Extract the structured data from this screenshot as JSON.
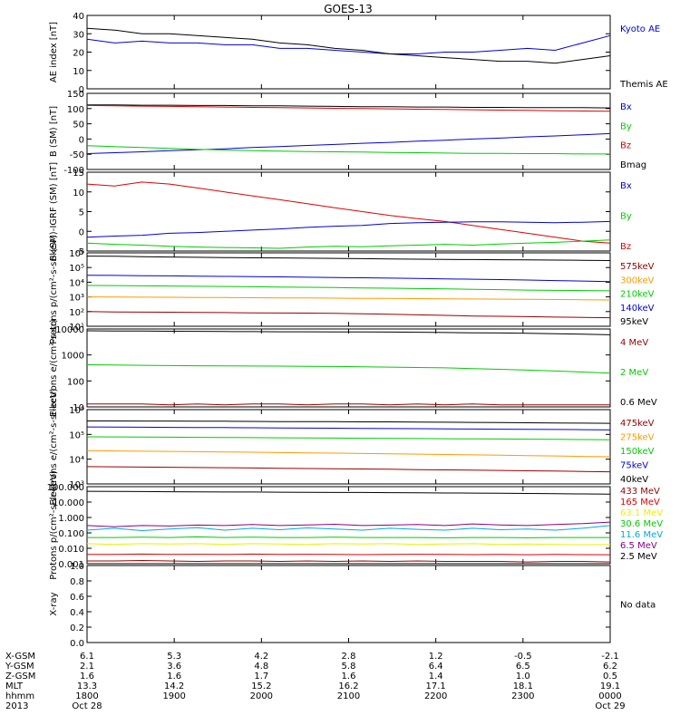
{
  "title": "GOES-13",
  "x_ticks": [
    "1800",
    "1900",
    "2000",
    "2100",
    "2200",
    "2300",
    "0000"
  ],
  "colors": {
    "black": "#000000",
    "blue": "#0000dd",
    "green": "#00cc00",
    "red": "#dd0000",
    "orange": "#ff9900",
    "darkred": "#990000",
    "yellow": "#eeee00",
    "cyan": "#00aadd",
    "purple": "#880088"
  },
  "chart_data": [
    {
      "type": "line",
      "ylabel": "AE index [nT]",
      "ylim": [
        0,
        40
      ],
      "yticks": [
        "0",
        "10",
        "20",
        "30",
        "40"
      ],
      "log": false,
      "legend": [
        {
          "label": "Kyoto AE",
          "color": "blue"
        },
        {
          "label": "Themis AE",
          "color": "black"
        }
      ],
      "series": [
        {
          "name": "Kyoto AE",
          "color": "blue",
          "values": [
            27,
            25,
            26,
            25,
            25,
            24,
            24,
            22,
            22,
            21,
            20,
            19,
            19,
            20,
            20,
            21,
            22,
            21,
            25,
            29
          ]
        },
        {
          "name": "Themis AE",
          "color": "black",
          "values": [
            33,
            32,
            30,
            30,
            29,
            28,
            27,
            25,
            24,
            22,
            21,
            19,
            18,
            17,
            16,
            15,
            15,
            14,
            16,
            18
          ]
        }
      ]
    },
    {
      "type": "line",
      "ylabel": "B (SM) [nT]",
      "ylim": [
        -100,
        150
      ],
      "yticks": [
        "-100",
        "-50",
        "0",
        "50",
        "100",
        "150"
      ],
      "log": false,
      "legend": [
        {
          "label": "Bx",
          "color": "blue"
        },
        {
          "label": "By",
          "color": "green"
        },
        {
          "label": "Bz",
          "color": "red"
        },
        {
          "label": "Bmag",
          "color": "black"
        }
      ],
      "series": [
        {
          "name": "Bmag",
          "color": "black",
          "values": [
            112,
            112,
            111,
            111,
            110,
            110,
            109,
            109,
            108,
            107,
            106,
            106,
            105,
            105,
            104,
            104,
            103,
            103,
            103,
            102
          ]
        },
        {
          "name": "Bz",
          "color": "red",
          "values": [
            110,
            109,
            108,
            107,
            106,
            105,
            104,
            103,
            102,
            101,
            100,
            99,
            98,
            97,
            96,
            95,
            94,
            93,
            92,
            91
          ]
        },
        {
          "name": "Bx",
          "color": "blue",
          "values": [
            -48,
            -45,
            -42,
            -38,
            -35,
            -32,
            -28,
            -25,
            -21,
            -18,
            -14,
            -11,
            -7,
            -4,
            0,
            3,
            7,
            10,
            14,
            18
          ]
        },
        {
          "name": "By",
          "color": "green",
          "values": [
            -22,
            -25,
            -28,
            -31,
            -34,
            -36,
            -38,
            -40,
            -41,
            -42,
            -43,
            -44,
            -45,
            -46,
            -47,
            -47,
            -48,
            -48,
            -49,
            -49
          ]
        }
      ]
    },
    {
      "type": "line",
      "ylabel": "B (SM)-IGRF (SM) [nT]",
      "ylim": [
        -5,
        15
      ],
      "yticks": [
        "-5",
        "0",
        "5",
        "10",
        "15"
      ],
      "log": false,
      "legend": [
        {
          "label": "Bx",
          "color": "blue"
        },
        {
          "label": "By",
          "color": "green"
        },
        {
          "label": "Bz",
          "color": "red"
        }
      ],
      "series": [
        {
          "name": "Bz",
          "color": "red",
          "values": [
            12,
            11.5,
            12.5,
            12,
            11,
            10,
            9,
            8,
            7,
            6,
            5,
            4,
            3.2,
            2.5,
            1.5,
            0.5,
            -0.5,
            -1.5,
            -2.5,
            -3
          ]
        },
        {
          "name": "Bx",
          "color": "blue",
          "values": [
            -1.5,
            -1.2,
            -1,
            -0.5,
            -0.3,
            0,
            0.3,
            0.6,
            1,
            1.3,
            1.5,
            2,
            2.2,
            2.3,
            2.4,
            2.4,
            2.3,
            2.2,
            2.3,
            2.5
          ]
        },
        {
          "name": "By",
          "color": "green",
          "values": [
            -3,
            -3.3,
            -3.5,
            -3.8,
            -4,
            -4.1,
            -4.2,
            -4.3,
            -4,
            -3.8,
            -3.9,
            -3.7,
            -3.5,
            -3.3,
            -3.5,
            -3.2,
            -3,
            -2.8,
            -2.5,
            -2.2
          ]
        }
      ]
    },
    {
      "type": "line",
      "ylabel": "Protons p/(cm²-s-sr-keV)",
      "ylim": [
        10,
        1000000
      ],
      "yticks": [
        "10¹",
        "10²",
        "10³",
        "10⁴",
        "10⁵",
        "10⁶"
      ],
      "log": true,
      "legend": [
        {
          "label": "575keV",
          "color": "darkred"
        },
        {
          "label": "300keV",
          "color": "orange"
        },
        {
          "label": "210keV",
          "color": "green"
        },
        {
          "label": "140keV",
          "color": "blue"
        },
        {
          "label": "95keV",
          "color": "black"
        }
      ],
      "series": [
        {
          "name": "95keV",
          "color": "black",
          "values": [
            600000,
            580000,
            550000,
            520000,
            500000,
            480000,
            460000,
            450000,
            430000,
            420000,
            400000,
            380000,
            370000,
            360000,
            350000,
            340000,
            330000,
            320000,
            310000,
            300000
          ]
        },
        {
          "name": "140keV",
          "color": "blue",
          "values": [
            30000,
            29000,
            28000,
            27000,
            26000,
            25000,
            24000,
            23000,
            22000,
            21000,
            20000,
            19000,
            18000,
            17000,
            16000,
            15000,
            14000,
            13000,
            12000,
            11000
          ]
        },
        {
          "name": "210keV",
          "color": "green",
          "values": [
            6000,
            5900,
            5700,
            5500,
            5300,
            5100,
            4900,
            4700,
            4500,
            4300,
            4100,
            3900,
            3700,
            3500,
            3300,
            3100,
            2900,
            2800,
            2700,
            2600
          ]
        },
        {
          "name": "300keV",
          "color": "orange",
          "values": [
            1000,
            980,
            960,
            940,
            920,
            900,
            880,
            860,
            840,
            820,
            800,
            780,
            760,
            740,
            720,
            700,
            680,
            660,
            640,
            620
          ]
        },
        {
          "name": "575keV",
          "color": "darkred",
          "values": [
            100,
            95,
            92,
            90,
            88,
            85,
            82,
            80,
            78,
            75,
            70,
            65,
            60,
            55,
            50,
            48,
            45,
            42,
            40,
            38
          ]
        }
      ]
    },
    {
      "type": "line",
      "ylabel": "Electrons e/(cm²-s-sr)",
      "ylim": [
        10,
        10000
      ],
      "yticks": [
        "10",
        "100",
        "1000",
        "10000"
      ],
      "log": true,
      "legend": [
        {
          "label": "4 MeV",
          "color": "darkred"
        },
        {
          "label": "2 MeV",
          "color": "green"
        },
        {
          "label": "0.6 MeV",
          "color": "black"
        }
      ],
      "series": [
        {
          "name": "0.6 MeV",
          "color": "black",
          "values": [
            8500,
            8400,
            8300,
            8200,
            8100,
            8000,
            7900,
            7800,
            7800,
            7700,
            7700,
            7600,
            7500,
            7300,
            7100,
            7000,
            6800,
            6600,
            6300,
            6000
          ]
        },
        {
          "name": "2 MeV",
          "color": "green",
          "values": [
            420,
            410,
            400,
            390,
            385,
            380,
            375,
            370,
            365,
            360,
            350,
            340,
            330,
            320,
            300,
            280,
            260,
            240,
            220,
            200
          ]
        },
        {
          "name": "4 MeV",
          "color": "darkred",
          "values": [
            13,
            13,
            13,
            12,
            13,
            12,
            13,
            13,
            12,
            13,
            13,
            12,
            13,
            12,
            13,
            12,
            12,
            12,
            12,
            12
          ]
        }
      ]
    },
    {
      "type": "line",
      "ylabel": "Electrons e/(cm²-s-sr-keV)",
      "ylim": [
        1000,
        1000000
      ],
      "yticks": [
        "10³",
        "10⁴",
        "10⁵",
        "10⁶"
      ],
      "log": true,
      "legend": [
        {
          "label": "475keV",
          "color": "darkred"
        },
        {
          "label": "275keV",
          "color": "orange"
        },
        {
          "label": "150keV",
          "color": "green"
        },
        {
          "label": "75keV",
          "color": "blue"
        },
        {
          "label": "40keV",
          "color": "black"
        }
      ],
      "series": [
        {
          "name": "40keV",
          "color": "black",
          "values": [
            350000,
            350000,
            345000,
            345000,
            340000,
            340000,
            335000,
            330000,
            330000,
            325000,
            320000,
            320000,
            315000,
            310000,
            305000,
            300000,
            295000,
            290000,
            285000,
            280000
          ]
        },
        {
          "name": "75keV",
          "color": "blue",
          "values": [
            200000,
            198000,
            195000,
            192000,
            190000,
            188000,
            185000,
            182000,
            180000,
            178000,
            175000,
            172000,
            170000,
            168000,
            165000,
            162000,
            160000,
            158000,
            155000,
            152000
          ]
        },
        {
          "name": "150keV",
          "color": "green",
          "values": [
            80000,
            79000,
            78000,
            77000,
            76000,
            75000,
            74000,
            73000,
            72000,
            71000,
            70000,
            69000,
            68000,
            67000,
            66000,
            65000,
            64000,
            63000,
            62000,
            61000
          ]
        },
        {
          "name": "275keV",
          "color": "orange",
          "values": [
            22000,
            21500,
            21000,
            20500,
            20000,
            19500,
            19000,
            18500,
            18000,
            17500,
            17000,
            16500,
            16000,
            15500,
            15000,
            14500,
            14000,
            13500,
            13000,
            12500
          ]
        },
        {
          "name": "475keV",
          "color": "darkred",
          "values": [
            5000,
            4900,
            4800,
            4700,
            4600,
            4500,
            4400,
            4300,
            4200,
            4100,
            4000,
            3900,
            3800,
            3700,
            3600,
            3500,
            3400,
            3300,
            3200,
            3100
          ]
        }
      ]
    },
    {
      "type": "line",
      "ylabel": "Protons p/(cm²-s-sr-keV)",
      "ylim": [
        0.001,
        100
      ],
      "yticks": [
        "0.001",
        "0.010",
        "0.100",
        "1.000",
        "10.000",
        "100.000"
      ],
      "log": true,
      "legend": [
        {
          "label": "433 MeV",
          "color": "darkred"
        },
        {
          "label": "165 MeV",
          "color": "red"
        },
        {
          "label": "63.1 MeV",
          "color": "yellow"
        },
        {
          "label": "30.6 MeV",
          "color": "green"
        },
        {
          "label": "11.6 MeV",
          "color": "cyan"
        },
        {
          "label": "6.5 MeV",
          "color": "purple"
        },
        {
          "label": "2.5 MeV",
          "color": "black"
        }
      ],
      "series": [
        {
          "name": "2.5 MeV",
          "color": "black",
          "values": [
            50,
            49,
            48,
            47,
            46,
            45,
            45,
            44,
            43,
            42,
            42,
            41,
            40,
            39,
            38,
            37,
            36,
            35,
            34,
            33
          ]
        },
        {
          "name": "6.5 MeV",
          "color": "purple",
          "values": [
            0.3,
            0.25,
            0.3,
            0.28,
            0.32,
            0.3,
            0.35,
            0.3,
            0.33,
            0.36,
            0.3,
            0.32,
            0.35,
            0.3,
            0.38,
            0.33,
            0.3,
            0.35,
            0.4,
            0.5
          ]
        },
        {
          "name": "11.6 MeV",
          "color": "cyan",
          "values": [
            0.15,
            0.2,
            0.14,
            0.18,
            0.22,
            0.15,
            0.2,
            0.16,
            0.21,
            0.18,
            0.15,
            0.2,
            0.17,
            0.15,
            0.2,
            0.16,
            0.18,
            0.15,
            0.2,
            0.3
          ]
        },
        {
          "name": "30.6 MeV",
          "color": "green",
          "values": [
            0.05,
            0.05,
            0.052,
            0.05,
            0.055,
            0.05,
            0.052,
            0.05,
            0.05,
            0.052,
            0.05,
            0.05,
            0.05,
            0.048,
            0.05,
            0.05,
            0.048,
            0.05,
            0.05,
            0.05
          ]
        },
        {
          "name": "63.1 MeV",
          "color": "yellow",
          "values": [
            0.02,
            0.018,
            0.02,
            0.019,
            0.02,
            0.018,
            0.02,
            0.019,
            0.018,
            0.02,
            0.019,
            0.02,
            0.018,
            0.019,
            0.02,
            0.018,
            0.019,
            0.018,
            0.017,
            0.018
          ]
        },
        {
          "name": "165 MeV",
          "color": "red",
          "values": [
            0.004,
            0.004,
            0.0042,
            0.004,
            0.0041,
            0.004,
            0.0042,
            0.004,
            0.0041,
            0.004,
            0.0039,
            0.004,
            0.0041,
            0.004,
            0.0039,
            0.004,
            0.0038,
            0.004,
            0.0039,
            0.0038
          ]
        },
        {
          "name": "433 MeV",
          "color": "darkred",
          "values": [
            0.0015,
            0.0015,
            0.0016,
            0.0015,
            0.0014,
            0.0015,
            0.0015,
            0.0014,
            0.0015,
            0.0014,
            0.0015,
            0.0014,
            0.0015,
            0.0014,
            0.0014,
            0.0014,
            0.0013,
            0.0014,
            0.0014,
            0.0013
          ]
        }
      ]
    },
    {
      "type": "line",
      "ylabel": "X-ray",
      "ylim": [
        0,
        1
      ],
      "yticks": [
        "0.0",
        "0.2",
        "0.4",
        "0.6",
        "0.8",
        "1.0"
      ],
      "log": false,
      "legend": [
        {
          "label": "No data",
          "color": "black"
        }
      ],
      "series": []
    }
  ],
  "ephemeris": {
    "row_labels": [
      "X-GSM",
      "Y-GSM",
      "Z-GSM",
      "MLT",
      "hhmm",
      "2013"
    ],
    "rows": [
      [
        "6.1",
        "5.3",
        "4.2",
        "2.8",
        "1.2",
        "-0.5",
        "-2.1"
      ],
      [
        "2.1",
        "3.6",
        "4.8",
        "5.8",
        "6.4",
        "6.5",
        "6.2"
      ],
      [
        "1.6",
        "1.6",
        "1.7",
        "1.6",
        "1.4",
        "1.0",
        "0.5"
      ],
      [
        "13.3",
        "14.2",
        "15.2",
        "16.2",
        "17.1",
        "18.1",
        "19.1"
      ],
      [
        "1800",
        "1900",
        "2000",
        "2100",
        "2200",
        "2300",
        "0000"
      ]
    ],
    "dates": [
      {
        "col": 0,
        "text": "Oct 28"
      },
      {
        "col": 6,
        "text": "Oct 29"
      }
    ]
  }
}
